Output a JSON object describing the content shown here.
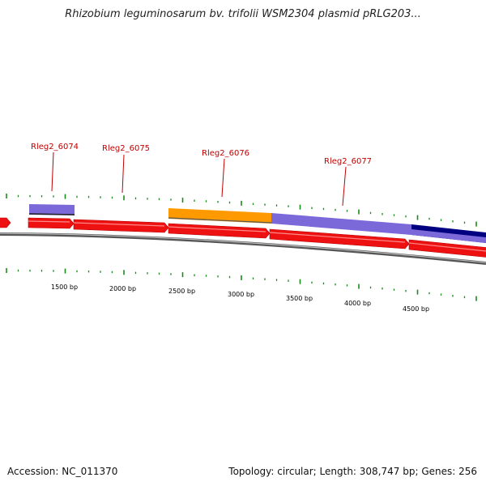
{
  "title": "Rhizobium leguminosarum bv. trifolii WSM2304 plasmid pRLG203...",
  "gene_labels": [
    {
      "text": "Rleg2_6074"
    },
    {
      "text": "Rleg2_6075"
    },
    {
      "text": "Rleg2_6076"
    },
    {
      "text": "Rleg2_6077"
    }
  ],
  "bp_labels": [
    "1500 bp",
    "2000 bp",
    "2500 bp",
    "3000 bp",
    "3500 bp",
    "4000 bp",
    "4500 bp"
  ],
  "footer": {
    "accession": "Accession: NC_011370",
    "summary": "Topology: circular; Length: 308,747 bp; Genes: 256"
  },
  "colors": {
    "cds": "#ee1111",
    "gene_orange": "#ff9900",
    "gene_purple": "#7b68d9",
    "gene_navy": "#000080",
    "backbone": "#808080",
    "tick": "#1a8a1a",
    "label": "#c00000"
  }
}
